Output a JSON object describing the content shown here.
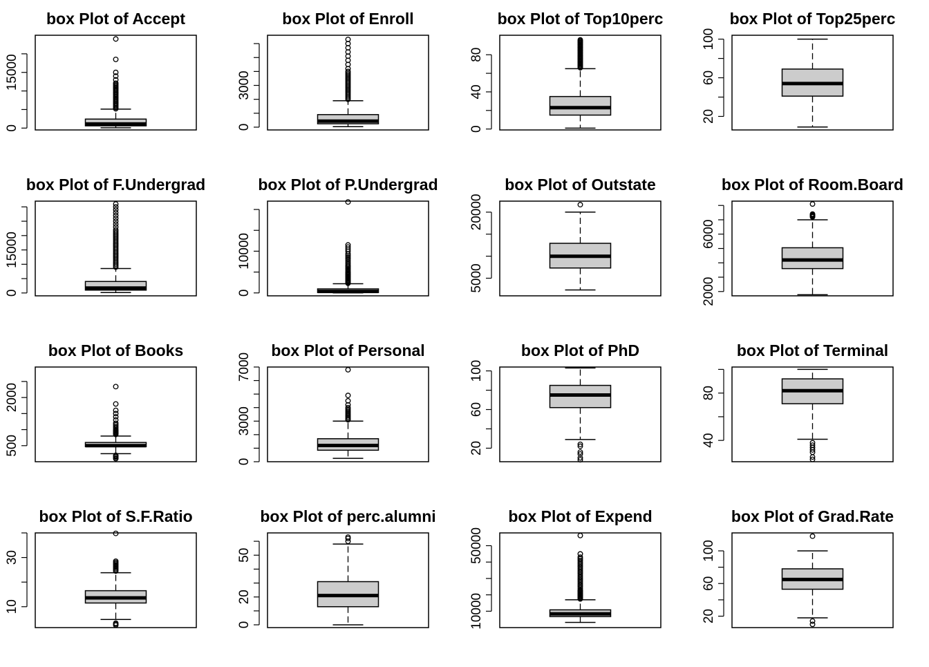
{
  "chart_data": [
    {
      "type": "box",
      "title": "box Plot of Accept",
      "ylim": [
        -500,
        25000
      ],
      "yticks": [
        {
          "v": 0,
          "label": "0"
        },
        {
          "v": 5000,
          "label": ""
        },
        {
          "v": 10000,
          "label": ""
        },
        {
          "v": 15000,
          "label": "15000"
        },
        {
          "v": 20000,
          "label": ""
        }
      ],
      "stats": {
        "min": 72,
        "q1": 604,
        "median": 1110,
        "q3": 2424,
        "max": 5100
      },
      "outliers": [
        5200,
        5500,
        5800,
        6100,
        6400,
        6700,
        7000,
        7300,
        7600,
        7900,
        8200,
        8500,
        8800,
        9100,
        9400,
        9700,
        10000,
        10300,
        10600,
        10900,
        11200,
        11500,
        11800,
        12100,
        13000,
        14000,
        15000,
        18500,
        24000
      ]
    },
    {
      "type": "box",
      "title": "box Plot of Enroll",
      "ylim": [
        -200,
        6600
      ],
      "yticks": [
        {
          "v": 0,
          "label": "0"
        },
        {
          "v": 1000,
          "label": ""
        },
        {
          "v": 2000,
          "label": ""
        },
        {
          "v": 3000,
          "label": "3000"
        },
        {
          "v": 4000,
          "label": ""
        },
        {
          "v": 5000,
          "label": ""
        },
        {
          "v": 6000,
          "label": ""
        }
      ],
      "stats": {
        "min": 35,
        "q1": 242,
        "median": 434,
        "q3": 902,
        "max": 1900
      },
      "outliers": [
        2000,
        2100,
        2200,
        2300,
        2400,
        2500,
        2600,
        2700,
        2800,
        2900,
        3000,
        3100,
        3200,
        3300,
        3400,
        3500,
        3600,
        3700,
        3800,
        3900,
        4000,
        4200,
        4500,
        4800,
        5100,
        5400,
        5700,
        6000,
        6300
      ]
    },
    {
      "type": "box",
      "title": "box Plot of Top10perc",
      "ylim": [
        -1,
        101
      ],
      "yticks": [
        {
          "v": 0,
          "label": "0"
        },
        {
          "v": 20,
          "label": ""
        },
        {
          "v": 40,
          "label": "40"
        },
        {
          "v": 60,
          "label": ""
        },
        {
          "v": 80,
          "label": "80"
        }
      ],
      "stats": {
        "min": 1,
        "q1": 15,
        "median": 23,
        "q3": 35,
        "max": 65
      },
      "outliers": [
        66,
        67,
        68,
        69,
        70,
        71,
        72,
        73,
        74,
        75,
        76,
        77,
        78,
        79,
        80,
        81,
        82,
        83,
        84,
        85,
        86,
        87,
        88,
        89,
        90,
        91,
        92,
        93,
        94,
        95,
        96
      ]
    },
    {
      "type": "box",
      "title": "box Plot of Top25perc",
      "ylim": [
        6,
        104
      ],
      "yticks": [
        {
          "v": 20,
          "label": "20"
        },
        {
          "v": 40,
          "label": ""
        },
        {
          "v": 60,
          "label": "60"
        },
        {
          "v": 80,
          "label": ""
        },
        {
          "v": 100,
          "label": "100"
        }
      ],
      "stats": {
        "min": 9,
        "q1": 41,
        "median": 54,
        "q3": 69,
        "max": 100
      },
      "outliers": []
    },
    {
      "type": "box",
      "title": "box Plot of F.Undergrad",
      "ylim": [
        -1000,
        32000
      ],
      "yticks": [
        {
          "v": 0,
          "label": "0"
        },
        {
          "v": 5000,
          "label": ""
        },
        {
          "v": 10000,
          "label": ""
        },
        {
          "v": 15000,
          "label": "15000"
        },
        {
          "v": 20000,
          "label": ""
        },
        {
          "v": 25000,
          "label": ""
        },
        {
          "v": 30000,
          "label": ""
        }
      ],
      "stats": {
        "min": 139,
        "q1": 992,
        "median": 1707,
        "q3": 4005,
        "max": 8500
      },
      "outliers": [
        9000,
        9500,
        10000,
        10500,
        11000,
        11500,
        12000,
        12500,
        13000,
        13500,
        14000,
        14500,
        15000,
        15500,
        16000,
        16500,
        17000,
        17500,
        18000,
        18500,
        19000,
        19500,
        20000,
        20500,
        21000,
        21500,
        22000,
        23000,
        24000,
        25000,
        26000,
        27000,
        28000,
        29000,
        30000,
        31000
      ]
    },
    {
      "type": "box",
      "title": "box Plot of P.Undergrad",
      "ylim": [
        -700,
        22000
      ],
      "yticks": [
        {
          "v": 0,
          "label": "0"
        },
        {
          "v": 5000,
          "label": ""
        },
        {
          "v": 10000,
          "label": "10000"
        },
        {
          "v": 15000,
          "label": ""
        },
        {
          "v": 20000,
          "label": ""
        }
      ],
      "stats": {
        "min": 1,
        "q1": 95,
        "median": 353,
        "q3": 967,
        "max": 2200
      },
      "outliers": [
        2300,
        2500,
        2700,
        2900,
        3100,
        3300,
        3500,
        3700,
        3900,
        4100,
        4300,
        4500,
        4700,
        4900,
        5100,
        5400,
        5700,
        6000,
        6300,
        6600,
        7000,
        7400,
        7800,
        8200,
        8600,
        9000,
        9400,
        10000,
        10500,
        11000,
        11500,
        21800
      ]
    },
    {
      "type": "box",
      "title": "box Plot of Outstate",
      "ylim": [
        1000,
        22500
      ],
      "yticks": [
        {
          "v": 5000,
          "label": "5000"
        },
        {
          "v": 10000,
          "label": ""
        },
        {
          "v": 15000,
          "label": ""
        },
        {
          "v": 20000,
          "label": "20000"
        }
      ],
      "stats": {
        "min": 2340,
        "q1": 7320,
        "median": 9990,
        "q3": 12925,
        "max": 20000
      },
      "outliers": [
        21700
      ]
    },
    {
      "type": "box",
      "title": "box Plot of Room.Board",
      "ylim": [
        1700,
        8300
      ],
      "yticks": [
        {
          "v": 2000,
          "label": "2000"
        },
        {
          "v": 3000,
          "label": ""
        },
        {
          "v": 4000,
          "label": ""
        },
        {
          "v": 5000,
          "label": ""
        },
        {
          "v": 6000,
          "label": "6000"
        },
        {
          "v": 7000,
          "label": ""
        },
        {
          "v": 8000,
          "label": ""
        }
      ],
      "stats": {
        "min": 1780,
        "q1": 3597,
        "median": 4200,
        "q3": 5050,
        "max": 7000
      },
      "outliers": [
        7200,
        7250,
        7300,
        7350,
        7400,
        8100
      ]
    },
    {
      "type": "box",
      "title": "box Plot of Books",
      "ylim": [
        0,
        2950
      ],
      "yticks": [
        {
          "v": 500,
          "label": "500"
        },
        {
          "v": 1000,
          "label": ""
        },
        {
          "v": 1500,
          "label": ""
        },
        {
          "v": 2000,
          "label": "2000"
        },
        {
          "v": 2500,
          "label": ""
        }
      ],
      "stats": {
        "min": 250,
        "q1": 470,
        "median": 500,
        "q3": 600,
        "max": 800
      },
      "outliers": [
        96,
        110,
        150,
        175,
        200,
        850,
        875,
        900,
        925,
        950,
        975,
        1000,
        1050,
        1100,
        1150,
        1200,
        1300,
        1400,
        1500,
        1600,
        1800,
        2340
      ]
    },
    {
      "type": "box",
      "title": "box Plot of Personal",
      "ylim": [
        0,
        7000
      ],
      "yticks": [
        {
          "v": 0,
          "label": "0"
        },
        {
          "v": 1000,
          "label": ""
        },
        {
          "v": 2000,
          "label": ""
        },
        {
          "v": 3000,
          "label": "3000"
        },
        {
          "v": 4000,
          "label": ""
        },
        {
          "v": 5000,
          "label": ""
        },
        {
          "v": 6000,
          "label": ""
        },
        {
          "v": 7000,
          "label": "7000"
        }
      ],
      "stats": {
        "min": 250,
        "q1": 850,
        "median": 1200,
        "q3": 1700,
        "max": 3000
      },
      "outliers": [
        3100,
        3200,
        3300,
        3400,
        3500,
        3600,
        3700,
        3800,
        3900,
        4000,
        4200,
        4500,
        4900,
        6800
      ]
    },
    {
      "type": "box",
      "title": "box Plot of PhD",
      "ylim": [
        6,
        104
      ],
      "yticks": [
        {
          "v": 20,
          "label": "20"
        },
        {
          "v": 40,
          "label": ""
        },
        {
          "v": 60,
          "label": "60"
        },
        {
          "v": 80,
          "label": ""
        },
        {
          "v": 100,
          "label": "100"
        }
      ],
      "stats": {
        "min": 29,
        "q1": 62,
        "median": 75,
        "q3": 85,
        "max": 103
      },
      "outliers": [
        8,
        10,
        14,
        16,
        22,
        24
      ]
    },
    {
      "type": "box",
      "title": "box Plot of Terminal",
      "ylim": [
        22,
        102
      ],
      "yticks": [
        {
          "v": 40,
          "label": "40"
        },
        {
          "v": 60,
          "label": ""
        },
        {
          "v": 80,
          "label": "80"
        },
        {
          "v": 100,
          "label": ""
        }
      ],
      "stats": {
        "min": 41,
        "q1": 71,
        "median": 82,
        "q3": 92,
        "max": 100
      },
      "outliers": [
        24,
        26,
        30,
        32,
        34,
        36,
        38
      ]
    },
    {
      "type": "box",
      "title": "box Plot of S.F.Ratio",
      "ylim": [
        1.5,
        40
      ],
      "yticks": [
        {
          "v": 10,
          "label": "10"
        },
        {
          "v": 20,
          "label": ""
        },
        {
          "v": 30,
          "label": "30"
        },
        {
          "v": 40,
          "label": ""
        }
      ],
      "stats": {
        "min": 4.8,
        "q1": 11.5,
        "median": 13.6,
        "q3": 16.5,
        "max": 23.8
      },
      "outliers": [
        2.5,
        2.9,
        3.3,
        24.5,
        25,
        25.5,
        26,
        26.5,
        27,
        27.5,
        28,
        28.5,
        39.8
      ]
    },
    {
      "type": "box",
      "title": "box Plot of perc.alumni",
      "ylim": [
        -2,
        66
      ],
      "yticks": [
        {
          "v": 0,
          "label": "0"
        },
        {
          "v": 10,
          "label": ""
        },
        {
          "v": 20,
          "label": "20"
        },
        {
          "v": 30,
          "label": ""
        },
        {
          "v": 40,
          "label": ""
        },
        {
          "v": 50,
          "label": "50"
        },
        {
          "v": 60,
          "label": ""
        }
      ],
      "stats": {
        "min": 0,
        "q1": 13,
        "median": 21,
        "q3": 31,
        "max": 58
      },
      "outliers": [
        60,
        62,
        63
      ]
    },
    {
      "type": "box",
      "title": "box Plot of Expend",
      "ylim": [
        0,
        57800
      ],
      "yticks": [
        {
          "v": 10000,
          "label": "10000"
        },
        {
          "v": 20000,
          "label": ""
        },
        {
          "v": 30000,
          "label": ""
        },
        {
          "v": 40000,
          "label": ""
        },
        {
          "v": 50000,
          "label": "50000"
        }
      ],
      "stats": {
        "min": 3186,
        "q1": 6751,
        "median": 8377,
        "q3": 10830,
        "max": 17000
      },
      "outliers": [
        17500,
        18000,
        18500,
        19000,
        19500,
        20000,
        20500,
        21000,
        21500,
        22000,
        22500,
        23000,
        24000,
        25000,
        26000,
        27000,
        28000,
        29000,
        30000,
        31000,
        32000,
        33000,
        34000,
        35000,
        36000,
        37000,
        38000,
        39000,
        40000,
        41000,
        42000,
        43000,
        45000,
        56200
      ]
    },
    {
      "type": "box",
      "title": "box Plot of Grad.Rate",
      "ylim": [
        6,
        122
      ],
      "yticks": [
        {
          "v": 20,
          "label": "20"
        },
        {
          "v": 40,
          "label": ""
        },
        {
          "v": 60,
          "label": "60"
        },
        {
          "v": 80,
          "label": ""
        },
        {
          "v": 100,
          "label": "100"
        }
      ],
      "stats": {
        "min": 18,
        "q1": 53,
        "median": 65,
        "q3": 78,
        "max": 100
      },
      "outliers": [
        10,
        14,
        118
      ]
    }
  ]
}
